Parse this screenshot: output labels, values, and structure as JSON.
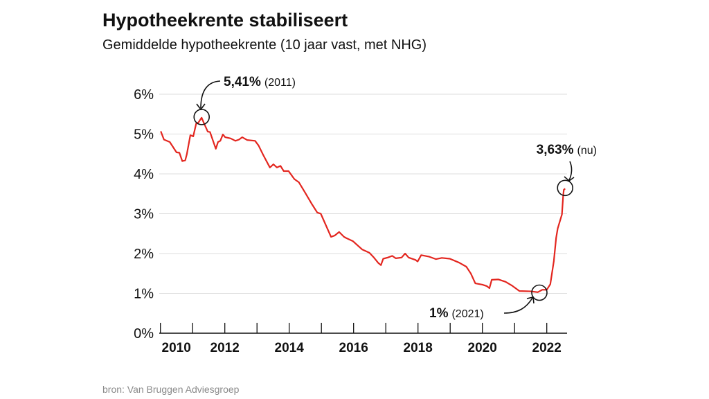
{
  "title": "Hypotheekrente stabiliseert",
  "subtitle": "Gemiddelde hypotheekrente (10 jaar vast, met NHG)",
  "source": "bron: Van Bruggen Adviesgroep",
  "colors": {
    "line": "#e3261f",
    "grid": "#dddddd",
    "text": "#111111",
    "source": "#8a8a8a"
  },
  "chart_data": {
    "type": "line",
    "title": "Hypotheekrente stabiliseert",
    "subtitle": "Gemiddelde hypotheekrente (10 jaar vast, met NHG)",
    "xlabel": "",
    "ylabel": "",
    "xlim": [
      2010,
      2022.63
    ],
    "ylim": [
      0,
      6
    ],
    "grid": true,
    "x_ticks": [
      2010,
      2011,
      2012,
      2013,
      2014,
      2015,
      2016,
      2017,
      2018,
      2019,
      2020,
      2021,
      2022
    ],
    "x_tick_labels": [
      {
        "value": 2010,
        "label": "2010"
      },
      {
        "value": 2012,
        "label": "2012"
      },
      {
        "value": 2014,
        "label": "2014"
      },
      {
        "value": 2016,
        "label": "2016"
      },
      {
        "value": 2018,
        "label": "2018"
      },
      {
        "value": 2020,
        "label": "2020"
      },
      {
        "value": 2022,
        "label": "2022"
      }
    ],
    "y_ticks": [
      {
        "value": 0,
        "label": "0%"
      },
      {
        "value": 1,
        "label": "1%"
      },
      {
        "value": 2,
        "label": "2%"
      },
      {
        "value": 3,
        "label": "3%"
      },
      {
        "value": 4,
        "label": "4%"
      },
      {
        "value": 5,
        "label": "5%"
      },
      {
        "value": 6,
        "label": "6%"
      }
    ],
    "series": [
      {
        "x": [
          2010.01,
          2010.11,
          2010.29,
          2010.5,
          2010.59,
          2010.68,
          2010.77,
          2010.82,
          2010.93,
          2011.02,
          2011.11,
          2011.18,
          2011.28,
          2011.36,
          2011.47,
          2011.54,
          2011.72,
          2011.79,
          2011.86,
          2011.94,
          2012.01,
          2012.18,
          2012.33,
          2012.44,
          2012.54,
          2012.69,
          2012.94,
          2013.05,
          2013.19,
          2013.4,
          2013.51,
          2013.62,
          2013.73,
          2013.83,
          2013.98,
          2014.16,
          2014.3,
          2014.48,
          2014.69,
          2014.87,
          2014.98,
          2015.3,
          2015.41,
          2015.55,
          2015.7,
          2015.77,
          2015.98,
          2016.06,
          2016.27,
          2016.49,
          2016.63,
          2016.77,
          2016.85,
          2016.92,
          2017.06,
          2017.2,
          2017.31,
          2017.49,
          2017.6,
          2017.71,
          2017.92,
          2017.99,
          2018.1,
          2018.35,
          2018.56,
          2018.74,
          2018.99,
          2019.28,
          2019.5,
          2019.64,
          2019.78,
          2020.0,
          2020.14,
          2020.22,
          2020.29,
          2020.5,
          2020.72,
          2020.93,
          2021.15,
          2021.51,
          2021.72,
          2021.86,
          2022.0,
          2022.11,
          2022.22,
          2022.29,
          2022.34,
          2022.47,
          2022.51,
          2022.53,
          2022.57
        ],
        "y": [
          5.07,
          4.86,
          4.8,
          4.54,
          4.53,
          4.32,
          4.34,
          4.49,
          4.97,
          4.94,
          5.26,
          5.29,
          5.41,
          5.26,
          5.06,
          5.05,
          4.63,
          4.8,
          4.83,
          4.99,
          4.92,
          4.89,
          4.83,
          4.86,
          4.92,
          4.85,
          4.83,
          4.71,
          4.48,
          4.16,
          4.24,
          4.16,
          4.2,
          4.07,
          4.07,
          3.87,
          3.79,
          3.55,
          3.26,
          3.03,
          3.0,
          2.42,
          2.45,
          2.54,
          2.42,
          2.39,
          2.31,
          2.25,
          2.1,
          2.02,
          1.9,
          1.76,
          1.71,
          1.87,
          1.9,
          1.94,
          1.88,
          1.9,
          2.0,
          1.9,
          1.84,
          1.8,
          1.96,
          1.92,
          1.86,
          1.89,
          1.87,
          1.77,
          1.67,
          1.5,
          1.25,
          1.22,
          1.18,
          1.13,
          1.34,
          1.35,
          1.29,
          1.19,
          1.06,
          1.05,
          1.03,
          1.09,
          1.09,
          1.23,
          1.81,
          2.39,
          2.63,
          2.98,
          3.45,
          3.6,
          3.63
        ]
      }
    ],
    "annotations": [
      {
        "x": 2011.28,
        "y": 5.41,
        "value": "5,41%",
        "note": "(2011)"
      },
      {
        "x": 2021.77,
        "y": 1.0,
        "value": "1%",
        "note": "(2021)"
      },
      {
        "x": 2022.57,
        "y": 3.63,
        "value": "3,63%",
        "note": "(nu)"
      }
    ]
  }
}
